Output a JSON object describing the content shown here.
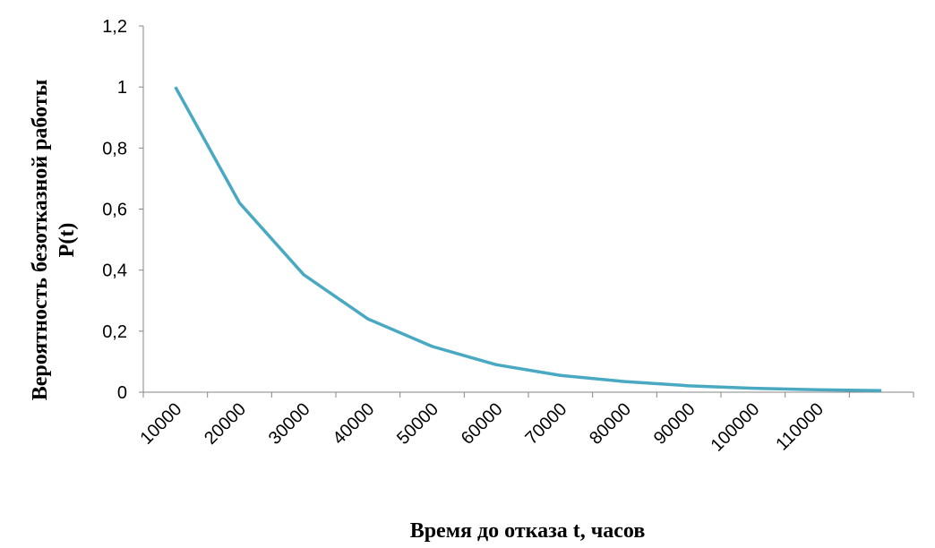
{
  "chart_data": {
    "type": "line",
    "x_label": "Время до отказа t, часов",
    "y_label": [
      "Вероятность безотказной работы",
      "P(t)"
    ],
    "categories": [
      "10000",
      "20000",
      "30000",
      "40000",
      "50000",
      "60000",
      "70000",
      "80000",
      "90000",
      "100000",
      "110000",
      null
    ],
    "series": [
      {
        "color": "#4aa9c2",
        "values": [
          1,
          0.62,
          0.385,
          0.24,
          0.15,
          0.09,
          0.055,
          0.035,
          0.021,
          0.013,
          0.008,
          0.005
        ]
      }
    ],
    "ylim": [
      0,
      1.2
    ],
    "yticks": [
      0,
      {
        "value": 0.2,
        "label": "0,2"
      },
      {
        "value": 0.4,
        "label": "0,4"
      },
      {
        "value": 0.6,
        "label": "0,6"
      },
      {
        "value": 0.8,
        "label": "0,8"
      },
      1,
      {
        "value": 1.2,
        "label": "1,2"
      }
    ],
    "grid": false
  }
}
